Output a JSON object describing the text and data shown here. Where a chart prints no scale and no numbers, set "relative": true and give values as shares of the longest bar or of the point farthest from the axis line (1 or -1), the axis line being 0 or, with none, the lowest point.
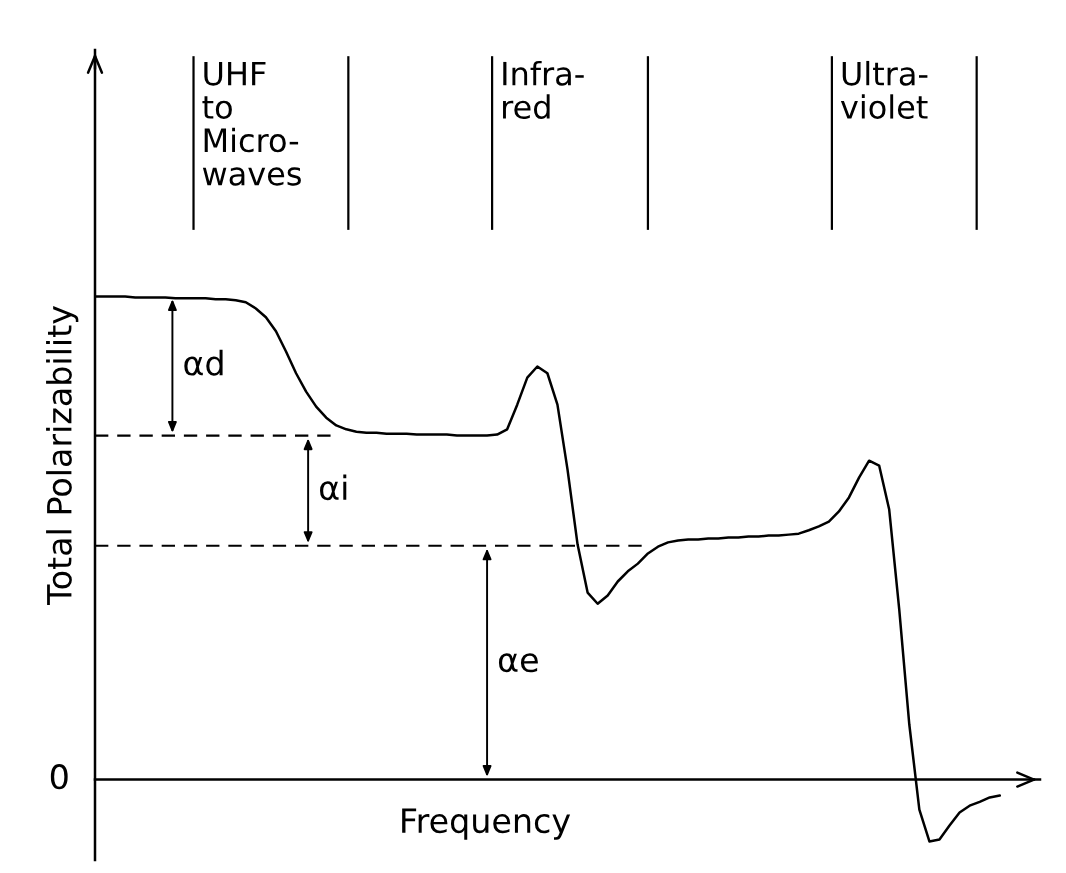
{
  "chart_data": {
    "type": "line",
    "relative": true,
    "xlabel": "Frequency",
    "ylabel": "Total Polarizability",
    "color": "#000000",
    "line_style": "solid",
    "marker": "none",
    "categories": [
      null,
      null,
      null,
      null,
      null,
      null,
      null,
      null,
      null,
      null,
      null,
      null,
      null,
      null,
      null,
      null,
      null,
      null,
      null,
      null,
      null,
      null,
      null,
      null,
      null,
      null,
      null,
      null,
      null,
      null,
      null,
      null,
      null,
      null,
      null,
      null,
      null,
      null,
      null,
      null,
      null,
      null,
      null,
      null,
      null,
      null,
      null,
      null,
      null,
      null,
      null,
      null,
      null,
      null,
      null,
      null,
      null,
      null,
      null,
      null,
      null,
      null,
      null,
      null,
      null,
      null,
      null,
      null,
      null,
      null,
      null,
      null,
      null,
      null,
      null,
      null,
      null,
      null,
      null,
      null,
      null,
      null,
      null,
      null,
      null,
      null,
      null,
      null,
      null,
      null,
      null
    ],
    "values": [
      1.0,
      1.0,
      1.0,
      1.0,
      0.998,
      0.998,
      0.998,
      0.998,
      0.996,
      0.996,
      0.996,
      0.996,
      0.994,
      0.994,
      0.992,
      0.988,
      0.975,
      0.957,
      0.928,
      0.886,
      0.841,
      0.803,
      0.772,
      0.749,
      0.733,
      0.725,
      0.72,
      0.718,
      0.718,
      0.716,
      0.716,
      0.716,
      0.714,
      0.714,
      0.714,
      0.714,
      0.712,
      0.712,
      0.712,
      0.712,
      0.714,
      0.725,
      0.776,
      0.832,
      0.855,
      0.841,
      0.776,
      0.642,
      0.487,
      0.387,
      0.364,
      0.381,
      0.41,
      0.431,
      0.447,
      0.468,
      0.482,
      0.491,
      0.495,
      0.497,
      0.497,
      0.499,
      0.499,
      0.501,
      0.501,
      0.503,
      0.503,
      0.505,
      0.505,
      0.507,
      0.509,
      0.516,
      0.524,
      0.534,
      0.555,
      0.584,
      0.625,
      0.66,
      0.65,
      0.559,
      0.352,
      0.114,
      -0.062,
      -0.128,
      -0.124,
      -0.095,
      -0.068,
      -0.054,
      -0.046,
      -0.037,
      -0.033
    ],
    "ref_lines": [
      {
        "axis": "y",
        "value": 0.712,
        "line_style": "dashed",
        "color": "#000000"
      },
      {
        "axis": "y",
        "value": 0.484,
        "line_style": "dashed",
        "color": "#000000"
      }
    ],
    "annotations": [
      "0",
      "αd",
      "αi",
      "αe",
      "UHF\nto\nMicro-\nwaves",
      "Infra-\nred",
      "Ultra-\nviolet"
    ]
  }
}
